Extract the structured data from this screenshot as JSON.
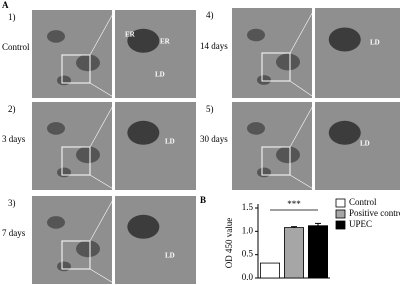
{
  "panel_a": {
    "label": "A",
    "rows": [
      {
        "number": "1)",
        "label": "Control",
        "annotations": [
          "ER",
          "ER",
          "LD"
        ]
      },
      {
        "number": "2)",
        "label": "3 days",
        "annotations": [
          "LD"
        ]
      },
      {
        "number": "3)",
        "label": "7 days",
        "annotations": [
          "LD"
        ]
      },
      {
        "number": "4)",
        "label": "14 days",
        "annotations": [
          "LD"
        ]
      },
      {
        "number": "5)",
        "label": "30 days",
        "annotations": [
          "LD"
        ]
      }
    ]
  },
  "chart_data": {
    "type": "bar",
    "panel_label": "B",
    "y_label": "OD 450 value",
    "significance": "***",
    "categories": [
      null
    ],
    "series": [
      {
        "name": "Control",
        "color": "#ffffff",
        "values": [
          0.32
        ],
        "errors": [
          0
        ]
      },
      {
        "name": "Positive control",
        "color": "#a6a6a6",
        "values": [
          1.08
        ],
        "errors": [
          0.02
        ]
      },
      {
        "name": "UPEC",
        "color": "#000000",
        "values": [
          1.12
        ],
        "errors": [
          0.05
        ]
      }
    ],
    "ylim": [
      0,
      1.5
    ],
    "yticks": [
      {
        "value": 0,
        "label": "0.0"
      },
      0.5,
      {
        "value": 1,
        "label": "1.0"
      },
      1.5
    ]
  }
}
